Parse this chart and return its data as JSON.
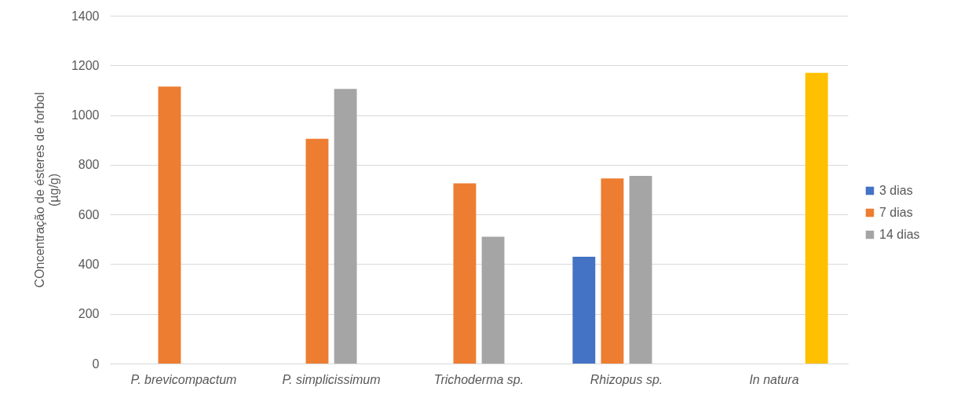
{
  "chart_data": {
    "type": "bar",
    "ylabel": "COncentração de ésteres de forbol (µg/g)",
    "categories": [
      "P. brevicompactum",
      "P. simplicissimum",
      "Trichoderma sp.",
      "Rhizopus sp.",
      "In natura"
    ],
    "series": [
      {
        "name": "3 dias",
        "color": "#4472c4",
        "values": [
          null,
          null,
          null,
          430,
          null
        ]
      },
      {
        "name": "7 dias",
        "color": "#ed7d31",
        "values": [
          1115,
          905,
          725,
          745,
          null
        ]
      },
      {
        "name": "14 dias",
        "color": "#a5a5a5",
        "values": [
          null,
          1105,
          510,
          755,
          null
        ]
      },
      {
        "color": "#ffc000",
        "values": [
          null,
          null,
          null,
          null,
          1170
        ]
      }
    ],
    "ylim": [
      0,
      1400
    ],
    "yticks": [
      0,
      200,
      400,
      600,
      800,
      1000,
      1200,
      1400
    ],
    "grid": "y",
    "legend": "right"
  }
}
